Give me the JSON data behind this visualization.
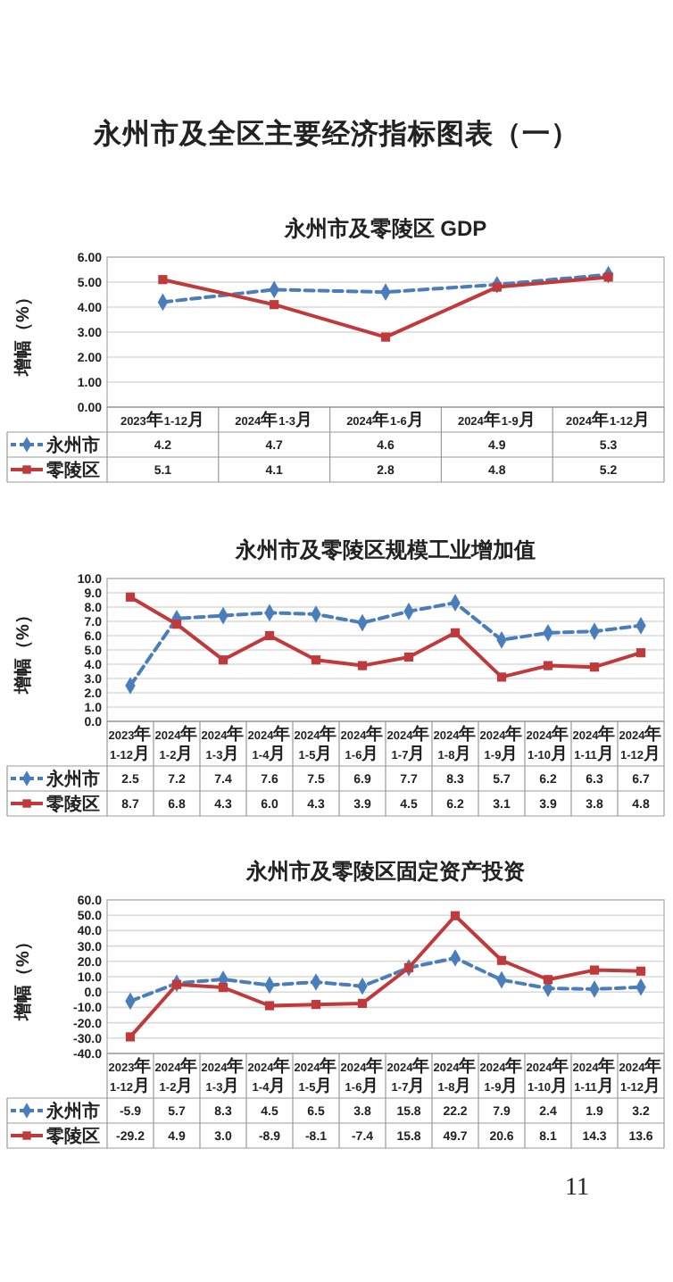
{
  "chart_data": [
    {
      "type": "line",
      "title": "永州市及零陵区 GDP",
      "ylabel": "增幅（%）",
      "annotations": [
        "永州市及全区主要经济指标图表（一）"
      ],
      "categories": [
        "2023年1-12月",
        "2024年1-3月",
        "2024年1-6月",
        "2024年1-9月",
        "2024年1-12月"
      ],
      "series": [
        {
          "name": "永州市",
          "color": "#4a7ebb",
          "marker": "diamond",
          "line_style": "dashed",
          "values": [
            4.2,
            4.7,
            4.6,
            4.9,
            5.3
          ],
          "value_labels": [
            "4.2",
            "4.7",
            "4.6",
            "4.9",
            "5.3"
          ]
        },
        {
          "name": "零陵区",
          "color": "#c0393b",
          "marker": "square",
          "line_style": "solid",
          "values": [
            5.1,
            4.1,
            2.8,
            4.8,
            5.2
          ],
          "value_labels": [
            "5.1",
            "4.1",
            "2.8",
            "4.8",
            "5.2"
          ]
        }
      ],
      "ylim": [
        0,
        6
      ],
      "yticks": [
        {
          "value": 0,
          "label": "0.00"
        },
        {
          "value": 1,
          "label": "1.00"
        },
        {
          "value": 2,
          "label": "2.00"
        },
        {
          "value": 3,
          "label": "3.00"
        },
        {
          "value": 4,
          "label": "4.00"
        },
        {
          "value": 5,
          "label": "5.00"
        },
        {
          "value": 6,
          "label": "6.00"
        }
      ],
      "grid": "y",
      "legend": "bottom"
    },
    {
      "type": "line",
      "title": "永州市及零陵区规模工业增加值",
      "ylabel": "增幅（%）",
      "categories": [
        "2023年\n1-12月",
        "2024年\n1-2月",
        "2024年\n1-3月",
        "2024年\n1-4月",
        "2024年\n1-5月",
        "2024年\n1-6月",
        "2024年\n1-7月",
        "2024年\n1-8月",
        "2024年\n1-9月",
        "2024年\n1-10月",
        "2024年\n1-11月",
        "2024年\n1-12月"
      ],
      "series": [
        {
          "name": "永州市",
          "color": "#4a7ebb",
          "marker": "diamond",
          "line_style": "dashed",
          "values": [
            2.5,
            7.2,
            7.4,
            7.6,
            7.5,
            6.9,
            7.7,
            8.3,
            5.7,
            6.2,
            6.3,
            6.7
          ],
          "value_labels": [
            "2.5",
            "7.2",
            "7.4",
            "7.6",
            "7.5",
            "6.9",
            "7.7",
            "8.3",
            "5.7",
            "6.2",
            "6.3",
            "6.7"
          ]
        },
        {
          "name": "零陵区",
          "color": "#c0393b",
          "marker": "square",
          "line_style": "solid",
          "values": [
            8.7,
            6.8,
            4.3,
            6.0,
            4.3,
            3.9,
            4.5,
            6.2,
            3.1,
            3.9,
            3.8,
            4.8
          ],
          "value_labels": [
            "8.7",
            "6.8",
            "4.3",
            "6.0",
            "4.3",
            "3.9",
            "4.5",
            "6.2",
            "3.1",
            "3.9",
            "3.8",
            "4.8"
          ]
        }
      ],
      "ylim": [
        0,
        10
      ],
      "yticks": [
        {
          "value": 0,
          "label": "0.0"
        },
        {
          "value": 1,
          "label": "1.0"
        },
        {
          "value": 2,
          "label": "2.0"
        },
        {
          "value": 3,
          "label": "3.0"
        },
        {
          "value": 4,
          "label": "4.0"
        },
        {
          "value": 5,
          "label": "5.0"
        },
        {
          "value": 6,
          "label": "6.0"
        },
        {
          "value": 7,
          "label": "7.0"
        },
        {
          "value": 8,
          "label": "8.0"
        },
        {
          "value": 9,
          "label": "9.0"
        },
        {
          "value": 10,
          "label": "10.0"
        }
      ],
      "grid": "y",
      "legend": "bottom"
    },
    {
      "type": "line",
      "title": "永州市及零陵区固定资产投资",
      "ylabel": "增幅（%）",
      "annotations": [
        "11"
      ],
      "categories": [
        "2023年\n1-12月",
        "2024年\n1-2月",
        "2024年\n1-3月",
        "2024年\n1-4月",
        "2024年\n1-5月",
        "2024年\n1-6月",
        "2024年\n1-7月",
        "2024年\n1-8月",
        "2024年\n1-9月",
        "2024年\n1-10月",
        "2024年\n1-11月",
        "2024年\n1-12月"
      ],
      "series": [
        {
          "name": "永州市",
          "color": "#4a7ebb",
          "marker": "diamond",
          "line_style": "dashed",
          "values": [
            -5.9,
            5.7,
            8.3,
            4.5,
            6.5,
            3.8,
            15.8,
            22.2,
            7.9,
            2.4,
            1.9,
            3.2
          ],
          "value_labels": [
            "-5.9",
            "5.7",
            "8.3",
            "4.5",
            "6.5",
            "3.8",
            "15.8",
            "22.2",
            "7.9",
            "2.4",
            "1.9",
            "3.2"
          ]
        },
        {
          "name": "零陵区",
          "color": "#c0393b",
          "marker": "square",
          "line_style": "solid",
          "values": [
            -29.2,
            4.9,
            3.0,
            -8.9,
            -8.1,
            -7.4,
            15.8,
            49.7,
            20.6,
            8.1,
            14.3,
            13.6
          ],
          "value_labels": [
            "-29.2",
            "4.9",
            "3.0",
            "-8.9",
            "-8.1",
            "-7.4",
            "15.8",
            "49.7",
            "20.6",
            "8.1",
            "14.3",
            "13.6"
          ]
        }
      ],
      "ylim": [
        -40,
        60
      ],
      "yticks": [
        {
          "value": -40,
          "label": "-40.0"
        },
        {
          "value": -30,
          "label": "-30.0"
        },
        {
          "value": -20,
          "label": "-20.0"
        },
        {
          "value": -10,
          "label": "-10.0"
        },
        {
          "value": 0,
          "label": "0.0"
        },
        {
          "value": 10,
          "label": "10.0"
        },
        {
          "value": 20,
          "label": "20.0"
        },
        {
          "value": 30,
          "label": "30.0"
        },
        {
          "value": 40,
          "label": "40.0"
        },
        {
          "value": 50,
          "label": "50.0"
        },
        {
          "value": 60,
          "label": "60.0"
        }
      ],
      "grid": "y",
      "legend": "bottom"
    }
  ]
}
